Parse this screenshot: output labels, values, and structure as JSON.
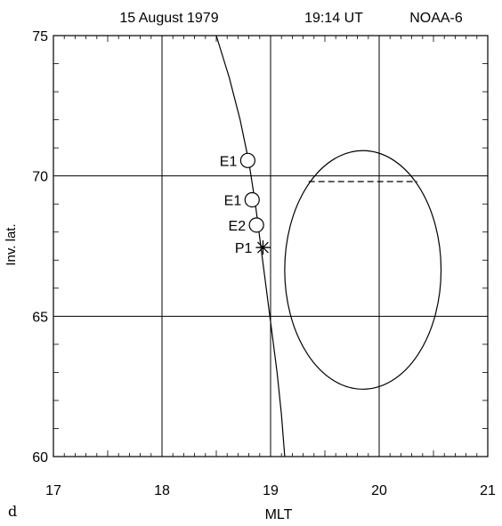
{
  "header": {
    "date": "15 August 1979",
    "time": "19:14 UT",
    "satellite": "NOAA-6"
  },
  "panel_label": "d",
  "chart_data": {
    "type": "scatter",
    "xlabel": "MLT",
    "ylabel": "Inv. lat.",
    "xlim": [
      17,
      21
    ],
    "ylim": [
      60,
      75
    ],
    "x_ticks": [
      "17",
      "18",
      "19",
      "20",
      "21"
    ],
    "y_ticks": [
      "60",
      "65",
      "70",
      "75"
    ],
    "grid": true,
    "series": [
      {
        "type": "line",
        "x": [
          18.5,
          18.62,
          18.72,
          18.8,
          18.86,
          18.91,
          18.96,
          19.01,
          19.06,
          19.1,
          19.13
        ],
        "y": [
          75,
          73.5,
          72,
          70.5,
          69,
          67.5,
          66,
          64.5,
          63,
          61.5,
          60
        ]
      },
      {
        "type": "ellipse",
        "center": [
          19.85,
          66.65
        ],
        "radii": [
          0.72,
          4.25
        ]
      },
      {
        "type": "dashed",
        "x": [
          19.35,
          20.35
        ],
        "y": [
          69.8,
          69.8
        ]
      }
    ],
    "points": [
      {
        "label": "E1",
        "x": 18.79,
        "y": 70.55,
        "marker": "circle"
      },
      {
        "label": "E1",
        "x": 18.83,
        "y": 69.15,
        "marker": "circle"
      },
      {
        "label": "E2",
        "x": 18.87,
        "y": 68.25,
        "marker": "circle"
      },
      {
        "label": "P1",
        "x": 18.93,
        "y": 67.45,
        "marker": "star"
      }
    ]
  }
}
